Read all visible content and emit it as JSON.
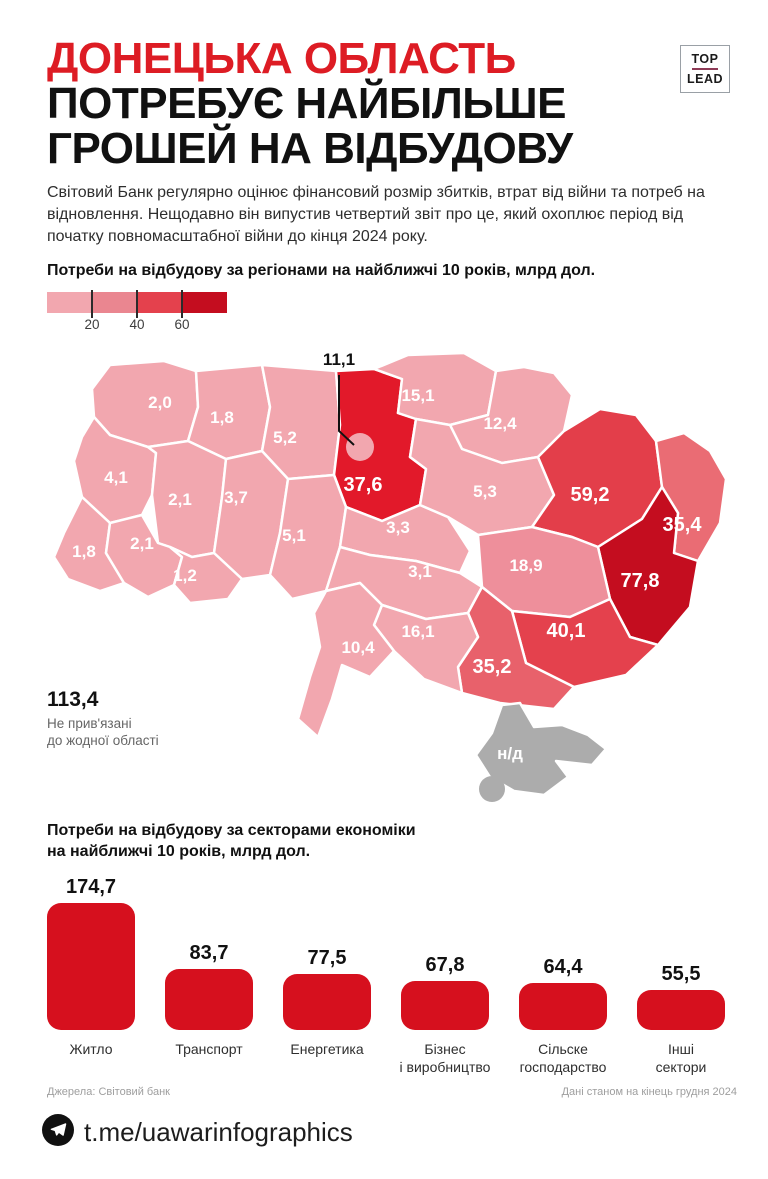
{
  "header": {
    "title_line1": "ДОНЕЦЬКА ОБЛАСТЬ",
    "title_line2": "ПОТРЕБУЄ НАЙБІЛЬШЕ",
    "title_line3": "ГРОШЕЙ НА ВІДБУДОВУ",
    "logo_top": "TOP",
    "logo_lead": "LEAD"
  },
  "intro": "Світовий Банк регулярно оцінює фінансовий розмір збитків, втрат від війни та потреб на відновлення. Нещодавно він випустив четвертий звіт про це, який охоплює період від початку повномасштабної війни до кінця 2024 року.",
  "map_section": {
    "heading": "Потреби на відбудову за регіонами на найближчі 10 років, млрд дол.",
    "legend": {
      "colors": [
        "#F2A7AF",
        "#EA8690",
        "#E4414D",
        "#C40D1F"
      ],
      "ticks": [
        "20",
        "40",
        "60"
      ]
    },
    "kyiv_city": {
      "value": "11,1",
      "num": 11.1
    },
    "unattributed": {
      "value": "113,4",
      "note_line1": "Не прив'язані",
      "note_line2": "до жодної області"
    },
    "no_data_color": "#ACACAC",
    "light_color": "#F2A7AF",
    "regions": [
      {
        "id": "volynska",
        "value": "2,0",
        "num": 2.0,
        "fill": "#F2A7AF",
        "big": false
      },
      {
        "id": "rivnenska",
        "value": "1,8",
        "num": 1.8,
        "fill": "#F2A7AF",
        "big": false
      },
      {
        "id": "zhytomyrska",
        "value": "5,2",
        "num": 5.2,
        "fill": "#F2A7AF",
        "big": false
      },
      {
        "id": "kyivska",
        "value": "37,6",
        "num": 37.6,
        "fill": "#E2192A",
        "big": true
      },
      {
        "id": "chernihivska",
        "value": "15,1",
        "num": 15.1,
        "fill": "#F2A7AF",
        "big": false
      },
      {
        "id": "sumska",
        "value": "12,4",
        "num": 12.4,
        "fill": "#F2A7AF",
        "big": false
      },
      {
        "id": "lvivska",
        "value": "4,1",
        "num": 4.1,
        "fill": "#F2A7AF",
        "big": false
      },
      {
        "id": "ternopilska",
        "value": "2,1",
        "num": 2.1,
        "fill": "#F2A7AF",
        "big": false
      },
      {
        "id": "khmelnytska",
        "value": "3,7",
        "num": 3.7,
        "fill": "#F2A7AF",
        "big": false
      },
      {
        "id": "zakarpatska",
        "value": "1,8",
        "num": 1.8,
        "fill": "#F2A7AF",
        "big": false
      },
      {
        "id": "ivano-frankivska",
        "value": "2,1",
        "num": 2.1,
        "fill": "#F2A7AF",
        "big": false
      },
      {
        "id": "chernivetska",
        "value": "1,2",
        "num": 1.2,
        "fill": "#F2A7AF",
        "big": false
      },
      {
        "id": "vinnytska",
        "value": "5,1",
        "num": 5.1,
        "fill": "#F2A7AF",
        "big": false
      },
      {
        "id": "cherkaska",
        "value": "3,3",
        "num": 3.3,
        "fill": "#F2A7AF",
        "big": false
      },
      {
        "id": "poltavska",
        "value": "5,3",
        "num": 5.3,
        "fill": "#F2A7AF",
        "big": false
      },
      {
        "id": "kharkivska",
        "value": "59,2",
        "num": 59.2,
        "fill": "#E33E4A",
        "big": true
      },
      {
        "id": "luhanska",
        "value": "35,4",
        "num": 35.4,
        "fill": "#EA6C74",
        "big": true
      },
      {
        "id": "donetska",
        "value": "77,8",
        "num": 77.8,
        "fill": "#C40D1F",
        "big": true
      },
      {
        "id": "dnipropetrovska",
        "value": "18,9",
        "num": 18.9,
        "fill": "#EE8F9B",
        "big": false
      },
      {
        "id": "kirovohradska",
        "value": "3,1",
        "num": 3.1,
        "fill": "#F2A7AF",
        "big": false
      },
      {
        "id": "zaporizka",
        "value": "40,1",
        "num": 40.1,
        "fill": "#E4414D",
        "big": true
      },
      {
        "id": "khersonska",
        "value": "35,2",
        "num": 35.2,
        "fill": "#E8616B",
        "big": true
      },
      {
        "id": "mykolaivska",
        "value": "16,1",
        "num": 16.1,
        "fill": "#F2A7AF",
        "big": false
      },
      {
        "id": "odeska",
        "value": "10,4",
        "num": 10.4,
        "fill": "#F2A7AF",
        "big": false
      },
      {
        "id": "krym",
        "value": "н/д",
        "num": null,
        "fill": "#ACACAC",
        "big": false
      }
    ]
  },
  "sectors_section": {
    "heading_line1": "Потреби на відбудову за секторами економіки",
    "heading_line2": "на найближчі 10 років, млрд дол.",
    "bar_color": "#D6101E",
    "bars": [
      {
        "value": "174,7",
        "num": 174.7,
        "label_lines": [
          "Житло"
        ]
      },
      {
        "value": "83,7",
        "num": 83.7,
        "label_lines": [
          "Транспорт"
        ]
      },
      {
        "value": "77,5",
        "num": 77.5,
        "label_lines": [
          "Енергетика"
        ]
      },
      {
        "value": "67,8",
        "num": 67.8,
        "label_lines": [
          "Бізнес",
          "і виробництво"
        ]
      },
      {
        "value": "64,4",
        "num": 64.4,
        "label_lines": [
          "Сільске",
          "господарство"
        ]
      },
      {
        "value": "55,5",
        "num": 55.5,
        "label_lines": [
          "Інші",
          "сектори"
        ]
      }
    ]
  },
  "footer": {
    "source": "Джерела: Світовий банк",
    "date_note": "Дані станом на кінець грудня 2024",
    "telegram_handle": "t.me/uawarinfographics",
    "telegram_icon": "telegram-paper-plane"
  },
  "chart_data": [
    {
      "type": "heatmap",
      "subtype": "choropleth-map-ukraine",
      "title": "Потреби на відбудову за регіонами на найближчі 10 років, млрд дол.",
      "unit": "млрд дол.",
      "legend": {
        "ticks": [
          20,
          40,
          60
        ],
        "position": "top-left",
        "colors": [
          "#F2A7AF",
          "#EA8690",
          "#E4414D",
          "#C40D1F"
        ]
      },
      "values": [
        {
          "region": "volynska",
          "value": 2.0
        },
        {
          "region": "rivnenska",
          "value": 1.8
        },
        {
          "region": "zhytomyrska",
          "value": 5.2
        },
        {
          "region": "kyiv-city",
          "value": 11.1
        },
        {
          "region": "kyivska",
          "value": 37.6
        },
        {
          "region": "chernihivska",
          "value": 15.1
        },
        {
          "region": "sumska",
          "value": 12.4
        },
        {
          "region": "lvivska",
          "value": 4.1
        },
        {
          "region": "ternopilska",
          "value": 2.1
        },
        {
          "region": "khmelnytska",
          "value": 3.7
        },
        {
          "region": "zakarpatska",
          "value": 1.8
        },
        {
          "region": "ivano-frankivska",
          "value": 2.1
        },
        {
          "region": "chernivetska",
          "value": 1.2
        },
        {
          "region": "vinnytska",
          "value": 5.1
        },
        {
          "region": "cherkaska",
          "value": 3.3
        },
        {
          "region": "poltavska",
          "value": 5.3
        },
        {
          "region": "kharkivska",
          "value": 59.2
        },
        {
          "region": "luhanska",
          "value": 35.4
        },
        {
          "region": "donetska",
          "value": 77.8
        },
        {
          "region": "dnipropetrovska",
          "value": 18.9
        },
        {
          "region": "kirovohradska",
          "value": 3.1
        },
        {
          "region": "zaporizka",
          "value": 40.1
        },
        {
          "region": "khersonska",
          "value": 35.2
        },
        {
          "region": "mykolaivska",
          "value": 16.1
        },
        {
          "region": "odeska",
          "value": 10.4
        },
        {
          "region": "krym",
          "value": null,
          "label": "н/д"
        }
      ],
      "annotations": [
        {
          "text": "113,4 Не прив'язані до жодної області",
          "value": 113.4
        }
      ]
    },
    {
      "type": "bar",
      "title": "Потреби на відбудову за секторами економіки на найближчі 10 років, млрд дол.",
      "categories": [
        "Житло",
        "Транспорт",
        "Енергетика",
        "Бізнес і виробництво",
        "Сільске господарство",
        "Інші сектори"
      ],
      "values": [
        174.7,
        83.7,
        77.5,
        67.8,
        64.4,
        55.5
      ],
      "xlabel": "",
      "ylabel": "млрд дол.",
      "ylim": [
        0,
        180
      ],
      "grid": false,
      "data_labels": true,
      "bar_color": "#D6101E"
    }
  ]
}
